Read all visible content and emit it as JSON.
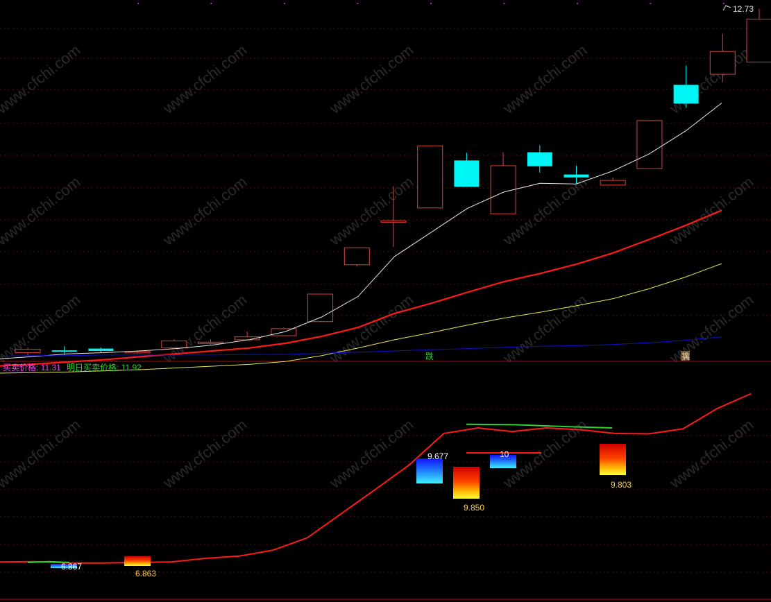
{
  "upper_panel": {
    "price_label": "12.73",
    "signal_down_label": "跌",
    "signal_up_label": "擒"
  },
  "lower_panel": {
    "buy_sell_label": "买卖价格: 11.31",
    "next_day_label": "明日买卖价格: 11.92"
  },
  "watermark": "www.cfchi.com",
  "colors": {
    "background": "#000000",
    "grid": "#5a1010",
    "candle_up": "#e0403a",
    "candle_down": "#00f5f5",
    "ma_short": "#e8e8e8",
    "ma_mid": "#ff1a1a",
    "ma_long": "#e8e850",
    "ma_longest": "#1010d0",
    "line_green": "#30d030",
    "label_magenta": "#ff40ff",
    "label_green": "#30d030",
    "label_yellow": "#ffd040"
  },
  "chart_data": [
    {
      "type": "candlestick",
      "panel": "price",
      "candles": [
        {
          "open": 6.86,
          "high": 6.95,
          "low": 6.8,
          "close": 6.92
        },
        {
          "open": 6.9,
          "high": 6.97,
          "low": 6.82,
          "close": 6.89
        },
        {
          "open": 6.93,
          "high": 6.95,
          "low": 6.86,
          "close": 6.89
        },
        {
          "open": 6.87,
          "high": 6.9,
          "low": 6.84,
          "close": 6.88
        },
        {
          "open": 6.94,
          "high": 7.09,
          "low": 6.94,
          "close": 7.06
        },
        {
          "open": 7.02,
          "high": 7.09,
          "low": 7.0,
          "close": 7.04
        },
        {
          "open": 7.08,
          "high": 7.22,
          "low": 7.08,
          "close": 7.13
        },
        {
          "open": 7.15,
          "high": 7.29,
          "low": 7.15,
          "close": 7.27
        },
        {
          "open": 7.39,
          "high": 7.86,
          "low": 7.39,
          "close": 7.86
        },
        {
          "open": 8.36,
          "high": 8.65,
          "low": 8.33,
          "close": 8.65
        },
        {
          "open": 9.11,
          "high": 9.7,
          "low": 8.66,
          "close": 9.11
        },
        {
          "open": 9.33,
          "high": 10.39,
          "low": 9.33,
          "close": 10.39
        },
        {
          "open": 10.14,
          "high": 10.27,
          "low": 9.69,
          "close": 9.69
        },
        {
          "open": 9.23,
          "high": 10.28,
          "low": 9.23,
          "close": 10.05
        },
        {
          "open": 10.28,
          "high": 10.4,
          "low": 9.93,
          "close": 10.04
        },
        {
          "open": 9.9,
          "high": 10.05,
          "low": 9.74,
          "close": 9.85
        },
        {
          "open": 9.72,
          "high": 9.85,
          "low": 9.72,
          "close": 9.8
        },
        {
          "open": 10.0,
          "high": 10.82,
          "low": 10.0,
          "close": 10.82
        },
        {
          "open": 11.43,
          "high": 11.76,
          "low": 11.04,
          "close": 11.11
        },
        {
          "open": 11.61,
          "high": 12.3,
          "low": 11.48,
          "close": 12.0
        },
        {
          "open": 11.82,
          "high": 12.73,
          "low": 11.82,
          "close": 12.55
        }
      ],
      "moving_averages": [
        {
          "key": "ma_short",
          "values": [
            6.75,
            6.79,
            6.84,
            6.86,
            6.89,
            6.93,
            6.99,
            7.08,
            7.22,
            7.47,
            7.82,
            8.5,
            8.91,
            9.32,
            9.6,
            9.75,
            9.74,
            9.96,
            10.25,
            10.64,
            11.12
          ]
        },
        {
          "key": "ma_mid",
          "values": [
            6.63,
            6.66,
            6.7,
            6.74,
            6.79,
            6.84,
            6.89,
            6.94,
            7.02,
            7.14,
            7.29,
            7.53,
            7.7,
            7.89,
            8.07,
            8.21,
            8.37,
            8.56,
            8.79,
            9.03,
            9.29
          ]
        },
        {
          "key": "ma_long",
          "values": [
            6.51,
            6.52,
            6.53,
            6.55,
            6.57,
            6.6,
            6.63,
            6.66,
            6.71,
            6.81,
            6.94,
            7.08,
            7.2,
            7.33,
            7.45,
            7.55,
            7.66,
            7.78,
            7.95,
            8.15,
            8.38
          ]
        },
        {
          "key": "ma_longest",
          "values": [
            6.8,
            6.81,
            6.81,
            6.82,
            6.82,
            6.82,
            6.82,
            6.83,
            6.83,
            6.85,
            6.87,
            6.89,
            6.91,
            6.93,
            6.95,
            6.97,
            6.98,
            7.0,
            7.03,
            7.07,
            7.13
          ]
        }
      ],
      "annotations": [
        {
          "index": 20,
          "label": "12.73"
        },
        {
          "index": 11,
          "label": "跌"
        },
        {
          "index": 18,
          "label": "擒"
        }
      ]
    },
    {
      "type": "line",
      "panel": "indicator",
      "series": [
        {
          "key": "ma_mid",
          "values": [
            6.87,
            6.88,
            6.85,
            6.85,
            6.86,
            6.87,
            6.95,
            7.0,
            7.13,
            7.4,
            7.93,
            8.46,
            9.0,
            9.68,
            9.8,
            9.72,
            9.8,
            9.76,
            9.68,
            9.67,
            9.78,
            10.22,
            10.55
          ]
        },
        {
          "key": "line_green",
          "values": [
            6.86,
            6.88,
            6.86
          ]
        },
        {
          "key": "line_green",
          "values": [
            9.91,
            9.9,
            9.86,
            9.83
          ]
        }
      ],
      "markers": [
        {
          "kind": "buy",
          "label": "6.867"
        },
        {
          "kind": "sell",
          "label": "6.863"
        },
        {
          "kind": "buy",
          "label": "9.677"
        },
        {
          "kind": "sell",
          "label": "9.850"
        },
        {
          "kind": "buy",
          "label": "10"
        },
        {
          "kind": "sell",
          "label": "9.803"
        }
      ]
    }
  ]
}
